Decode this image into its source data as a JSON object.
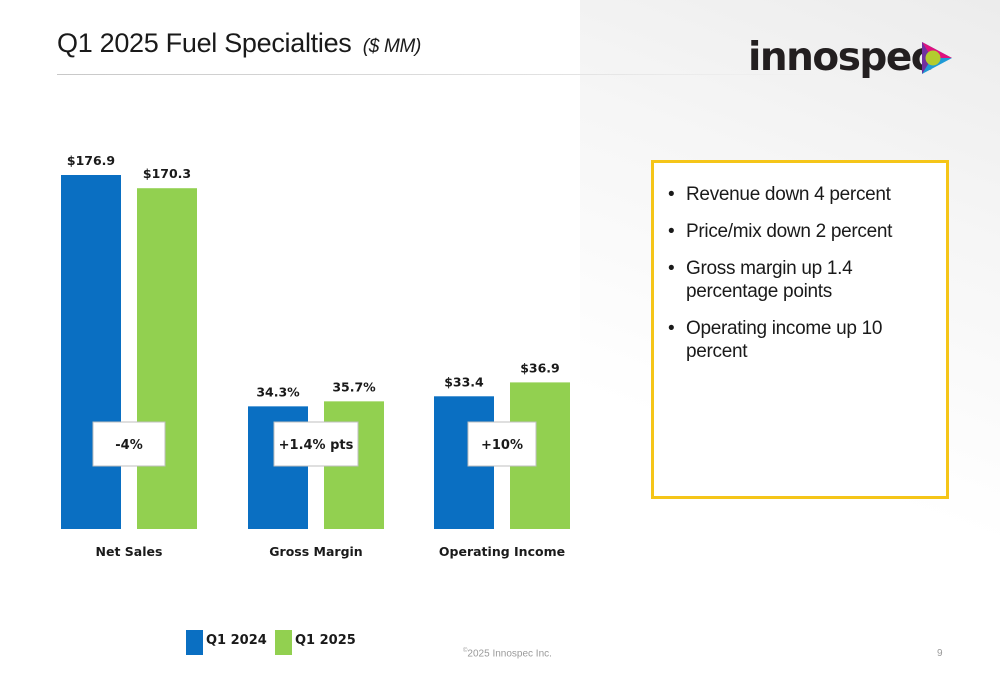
{
  "slide": {
    "title": "Q1 2025 Fuel Specialties",
    "title_unit": "($ MM)",
    "logo_text": "innospec",
    "footer_symbol": "©",
    "footer": "2025 Innospec Inc.",
    "page_number": "9"
  },
  "colors": {
    "q1_2024": "#0a6fc2",
    "q1_2025": "#92d050",
    "box_border": "#f5c518",
    "logo_purple": "#7030a0",
    "logo_pink": "#e0117f",
    "logo_cyan": "#1e9ad6",
    "logo_lime": "#b3cc2e"
  },
  "chart_data": {
    "type": "bar",
    "categories": [
      "Net Sales",
      "Gross Margin",
      "Operating Income"
    ],
    "series": [
      {
        "name": "Q1 2024",
        "labels": [
          "$176.9",
          "34.3%",
          "$33.4"
        ],
        "values": [
          176.9,
          34.3,
          33.4
        ]
      },
      {
        "name": "Q1 2025",
        "labels": [
          "$170.3",
          "35.7%",
          "$36.9"
        ],
        "values": [
          170.3,
          35.7,
          36.9
        ]
      }
    ],
    "change_labels": [
      "-4%",
      "+1.4% pts",
      "+10%"
    ],
    "axes_visible": false,
    "grid": false,
    "legend_position": "bottom-left"
  },
  "bullets": [
    "Revenue down 4 percent",
    "Price/mix down 2 percent",
    "Gross margin up 1.4 percentage points",
    "Operating income up 10 percent"
  ]
}
